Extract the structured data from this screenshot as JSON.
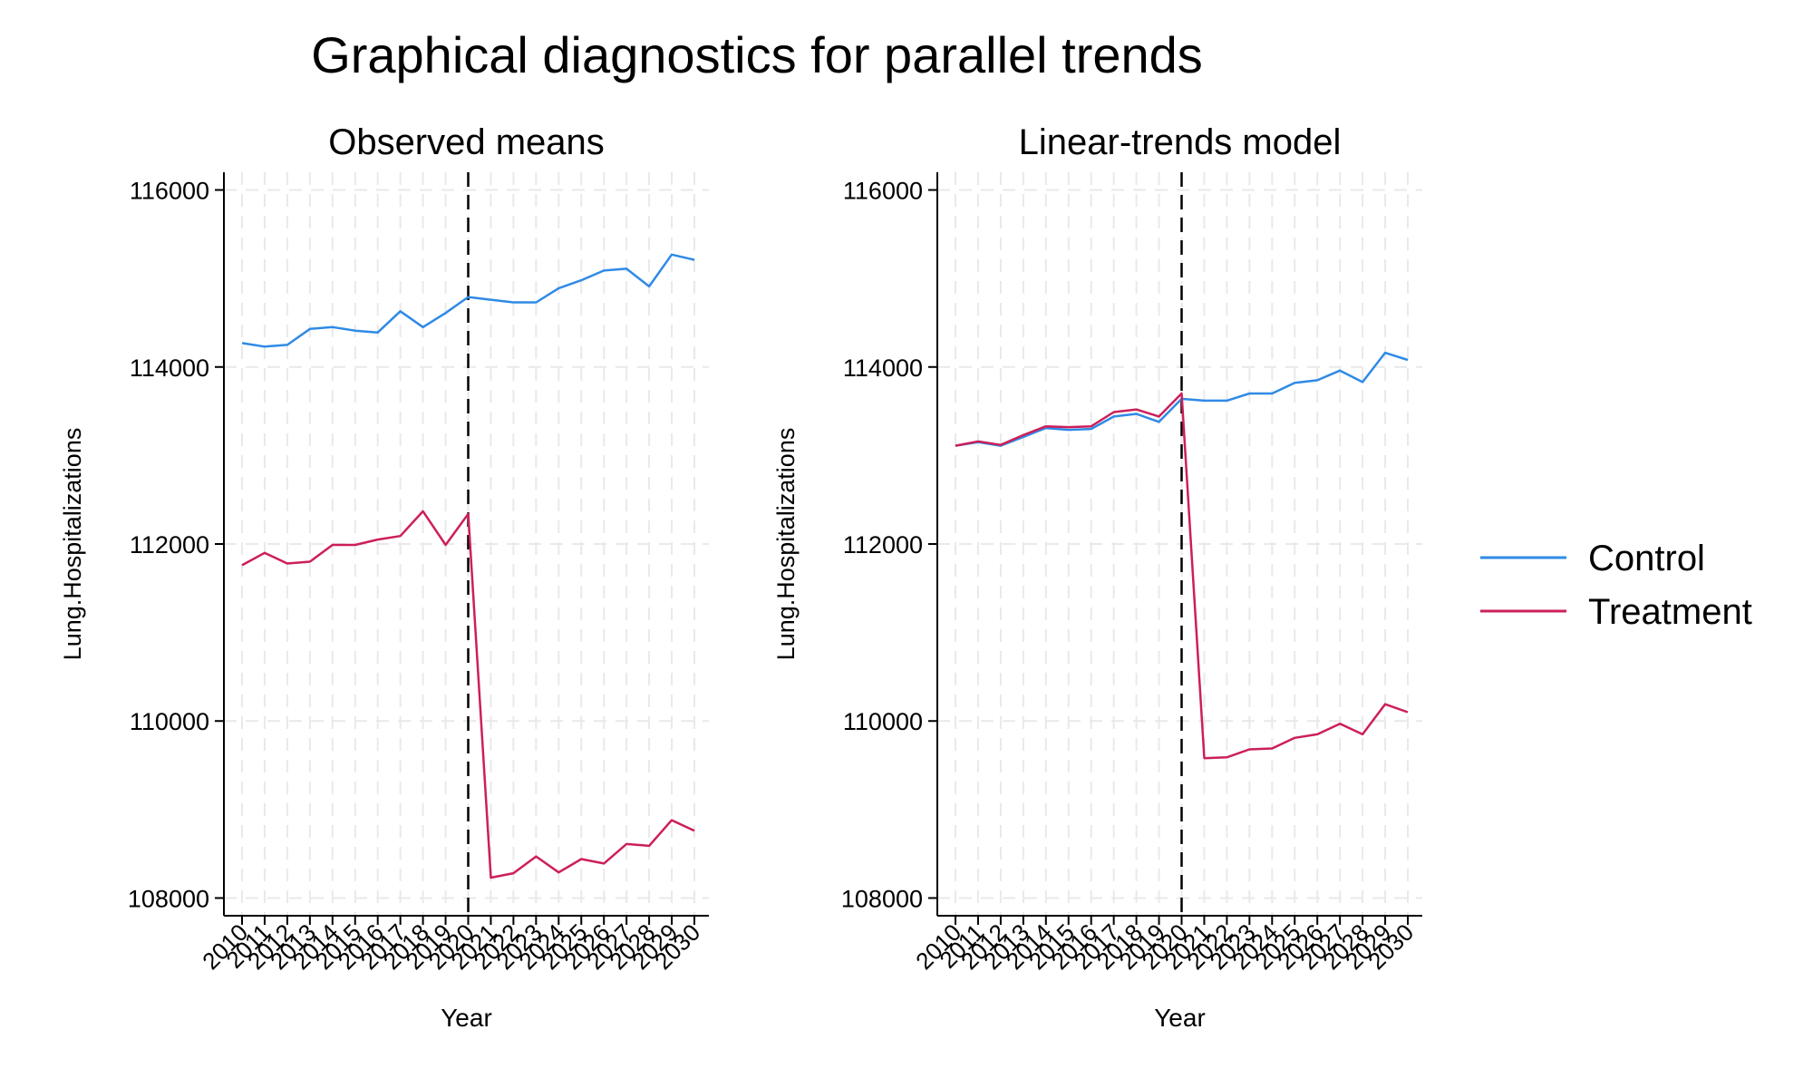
{
  "title": "Graphical diagnostics for parallel trends",
  "colors": {
    "control": "#2f8ae6",
    "treatment": "#cc1f5a",
    "grid": "#e9e9e9",
    "axis": "#000000"
  },
  "legend": {
    "position": "right",
    "entries": [
      "Control",
      "Treatment"
    ]
  },
  "chart_data": [
    {
      "type": "line",
      "title": "Observed means",
      "xlabel": "Year",
      "ylabel": "Lung.Hospitalizations",
      "ylim": [
        107800,
        116200
      ],
      "yticks": [
        108000,
        110000,
        112000,
        114000,
        116000
      ],
      "x": [
        "2010",
        "2011",
        "2012",
        "2013",
        "2014",
        "2015",
        "2016",
        "2017",
        "2018",
        "2019",
        "2020",
        "2021",
        "2022",
        "2023",
        "2024",
        "2025",
        "2026",
        "2027",
        "2028",
        "2029",
        "2030"
      ],
      "treatment_start": "2020",
      "grid": true,
      "series": [
        {
          "name": "Control",
          "values": [
            114270,
            114230,
            114250,
            114430,
            114450,
            114410,
            114390,
            114630,
            114450,
            114610,
            114790,
            114760,
            114730,
            114730,
            114890,
            114980,
            115090,
            115110,
            114910,
            115270,
            115210
          ]
        },
        {
          "name": "Treatment",
          "values": [
            111760,
            111900,
            111780,
            111800,
            111990,
            111990,
            112050,
            112090,
            112370,
            111990,
            112340,
            108230,
            108280,
            108470,
            108290,
            108440,
            108390,
            108610,
            108590,
            108880,
            108760
          ]
        }
      ]
    },
    {
      "type": "line",
      "title": "Linear-trends model",
      "xlabel": "Year",
      "ylabel": "Lung.Hospitalizations",
      "ylim": [
        107800,
        116200
      ],
      "yticks": [
        108000,
        110000,
        112000,
        114000,
        116000
      ],
      "x": [
        "2010",
        "2011",
        "2012",
        "2013",
        "2014",
        "2015",
        "2016",
        "2017",
        "2018",
        "2019",
        "2020",
        "2021",
        "2022",
        "2023",
        "2024",
        "2025",
        "2026",
        "2027",
        "2028",
        "2029",
        "2030"
      ],
      "treatment_start": "2020",
      "grid": true,
      "series": [
        {
          "name": "Control",
          "values": [
            113110,
            113150,
            113110,
            113210,
            113310,
            113290,
            113300,
            113440,
            113470,
            113380,
            113640,
            113620,
            113620,
            113700,
            113700,
            113820,
            113850,
            113960,
            113830,
            114160,
            114080
          ]
        },
        {
          "name": "Treatment",
          "values": [
            113110,
            113160,
            113120,
            113230,
            113330,
            113320,
            113330,
            113490,
            113520,
            113440,
            113700,
            109580,
            109590,
            109680,
            109690,
            109810,
            109850,
            109970,
            109850,
            110190,
            110100
          ]
        }
      ]
    }
  ]
}
